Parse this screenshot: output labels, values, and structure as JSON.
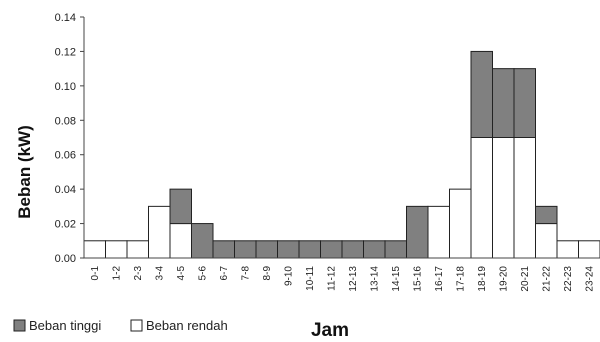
{
  "chart_data": {
    "type": "bar",
    "stacked": true,
    "categories": [
      "0-1",
      "1-2",
      "2-3",
      "3-4",
      "4-5",
      "5-6",
      "6-7",
      "7-8",
      "8-9",
      "9-10",
      "10-11",
      "11-12",
      "12-13",
      "13-14",
      "14-15",
      "15-16",
      "16-17",
      "17-18",
      "18-19",
      "19-20",
      "20-21",
      "21-22",
      "22-23",
      "23-24"
    ],
    "series": [
      {
        "name": "Beban rendah",
        "color": "#ffffff",
        "values": [
          0.01,
          0.01,
          0.01,
          0.03,
          0.02,
          0,
          0,
          0,
          0,
          0,
          0,
          0,
          0,
          0,
          0,
          0,
          0.03,
          0.04,
          0.07,
          0.07,
          0.07,
          0.02,
          0.01,
          0.01
        ]
      },
      {
        "name": "Beban tinggi",
        "color": "#808080",
        "values": [
          0,
          0,
          0,
          0,
          0.02,
          0.02,
          0.01,
          0.01,
          0.01,
          0.01,
          0.01,
          0.01,
          0.01,
          0.01,
          0.01,
          0.03,
          0,
          0,
          0.05,
          0.04,
          0.04,
          0.01,
          0,
          0
        ]
      }
    ],
    "title": "",
    "xlabel": "Jam",
    "ylabel": "Beban (kW)",
    "ylim": [
      0,
      0.14
    ],
    "yticks": [
      "0.00",
      "0.02",
      "0.04",
      "0.06",
      "0.08",
      "0.10",
      "0.12",
      "0.14"
    ],
    "legend_position": "bottom-left",
    "grid": false
  }
}
